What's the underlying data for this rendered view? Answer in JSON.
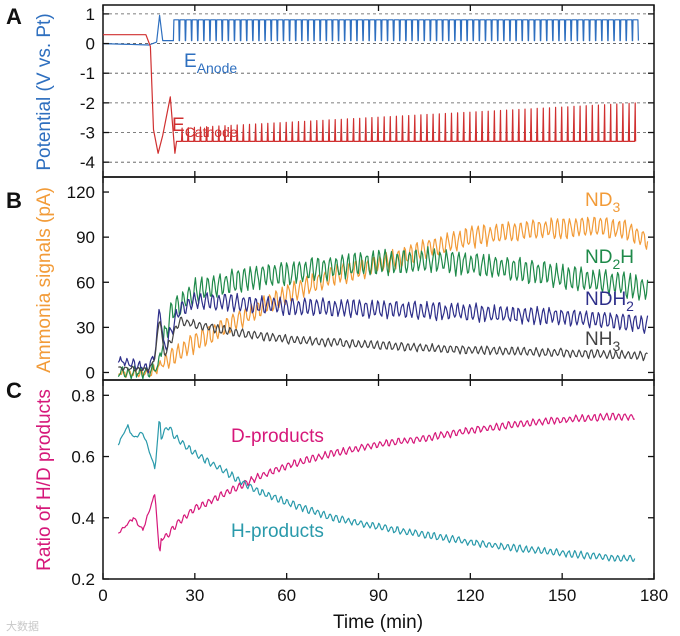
{
  "figure": {
    "x_axis": {
      "label": "Time (min)",
      "range": [
        0,
        180
      ],
      "ticks": [
        0,
        30,
        60,
        90,
        120,
        150,
        180
      ]
    },
    "watermark": "大数据",
    "colors": {
      "anode": "#2e6fbf",
      "cathode": "#d03030",
      "nd3": "#f29b38",
      "nd2h": "#1f8a4a",
      "ndh2": "#2e2f8a",
      "nh3": "#444444",
      "d_products": "#d6187a",
      "h_products": "#2a9aab",
      "axis": "#111111",
      "grid": "#555555"
    }
  },
  "chart_data": [
    {
      "panel": "A",
      "type": "line",
      "ylabel": "Potential (V vs. Pt)",
      "ylim": [
        -4.5,
        1.3
      ],
      "yticks": [
        1,
        0,
        -1,
        -2,
        -3,
        -4
      ],
      "grid": "dashed horizontal at integer potentials",
      "series": [
        {
          "key": "anode",
          "label_main": "E",
          "label_sub": "Anode",
          "segments": [
            [
              0,
              0
            ],
            [
              15,
              -0.05
            ],
            [
              17.5,
              0.05
            ],
            [
              18.5,
              0.95
            ],
            [
              19.5,
              0.1
            ],
            [
              22,
              0.1
            ]
          ],
          "oscillation": {
            "start": 23,
            "end": 173,
            "period": 2,
            "high": 0.8,
            "low": 0.1
          }
        },
        {
          "key": "cathode",
          "label_main": "E",
          "label_sub": "Cathode",
          "segments": [
            [
              0,
              0.3
            ],
            [
              14,
              0.3
            ],
            [
              15.5,
              -0.1
            ],
            [
              16.5,
              -2.9
            ],
            [
              18,
              -3.7
            ],
            [
              19.5,
              -3.1
            ],
            [
              22,
              -1.8
            ],
            [
              23.5,
              -3.7
            ]
          ],
          "oscillation": {
            "start": 24,
            "end": 173,
            "period": 2,
            "low": -3.3,
            "high_start": -2.85,
            "high_end": -2.0
          }
        }
      ]
    },
    {
      "panel": "B",
      "type": "line",
      "ylabel": "Ammonia signals (pA)",
      "ylim": [
        -5,
        130
      ],
      "yticks": [
        0,
        30,
        60,
        90,
        120
      ],
      "series": [
        {
          "key": "nd3",
          "label_main": "ND",
          "label_sub": "3",
          "label_tail": "",
          "x": [
            5,
            15,
            18,
            22,
            30,
            45,
            60,
            75,
            90,
            105,
            120,
            140,
            160,
            170,
            178
          ],
          "y": [
            0,
            0,
            3,
            10,
            20,
            36,
            52,
            64,
            72,
            82,
            90,
            95,
            97,
            95,
            88
          ],
          "amplitude": 6
        },
        {
          "key": "nd2h",
          "label_main": "ND",
          "label_sub": "2",
          "label_tail": "H",
          "x": [
            5,
            15,
            18,
            22,
            30,
            45,
            60,
            75,
            90,
            105,
            120,
            140,
            160,
            178
          ],
          "y": [
            0,
            0,
            5,
            40,
            54,
            62,
            66,
            70,
            73,
            75,
            72,
            67,
            61,
            56
          ],
          "amplitude": 7
        },
        {
          "key": "ndh2",
          "label_main": "NDH",
          "label_sub": "2",
          "label_tail": "",
          "x": [
            5,
            15,
            17,
            18.5,
            20,
            25,
            30,
            45,
            60,
            90,
            120,
            150,
            178
          ],
          "y": [
            8,
            3,
            12,
            45,
            15,
            42,
            48,
            46,
            44,
            42,
            40,
            37,
            32
          ],
          "amplitude": 5
        },
        {
          "key": "nh3",
          "label_main": "NH",
          "label_sub": "3",
          "label_tail": "",
          "x": [
            5,
            15,
            17,
            18.5,
            20,
            25,
            30,
            45,
            60,
            90,
            120,
            150,
            178
          ],
          "y": [
            3,
            2,
            10,
            38,
            12,
            34,
            32,
            26,
            22,
            18,
            15,
            13,
            11
          ],
          "amplitude": 2.5
        }
      ]
    },
    {
      "panel": "C",
      "type": "line",
      "ylabel": "Ratio of H/D products",
      "ylim": [
        0.2,
        0.85
      ],
      "yticks": [
        0.2,
        0.4,
        0.6,
        0.8
      ],
      "series": [
        {
          "key": "d_products",
          "label": "D-products",
          "x": [
            5,
            8,
            10,
            13,
            15,
            17,
            18.5,
            19,
            21,
            24,
            30,
            40,
            50,
            60,
            75,
            90,
            105,
            120,
            135,
            150,
            165,
            174
          ],
          "y": [
            0.35,
            0.38,
            0.4,
            0.36,
            0.42,
            0.48,
            0.27,
            0.33,
            0.34,
            0.38,
            0.43,
            0.48,
            0.53,
            0.57,
            0.61,
            0.64,
            0.66,
            0.685,
            0.705,
            0.72,
            0.73,
            0.73
          ],
          "amplitude": 0.01
        },
        {
          "key": "h_products",
          "label": "H-products",
          "x": [
            5,
            8,
            10,
            13,
            15,
            17,
            18.5,
            19,
            21,
            24,
            30,
            40,
            50,
            60,
            75,
            90,
            105,
            120,
            135,
            150,
            165,
            174
          ],
          "y": [
            0.64,
            0.7,
            0.66,
            0.68,
            0.62,
            0.56,
            0.73,
            0.66,
            0.7,
            0.66,
            0.61,
            0.55,
            0.49,
            0.45,
            0.4,
            0.37,
            0.345,
            0.32,
            0.3,
            0.285,
            0.27,
            0.265
          ],
          "amplitude": 0.01
        }
      ]
    }
  ]
}
